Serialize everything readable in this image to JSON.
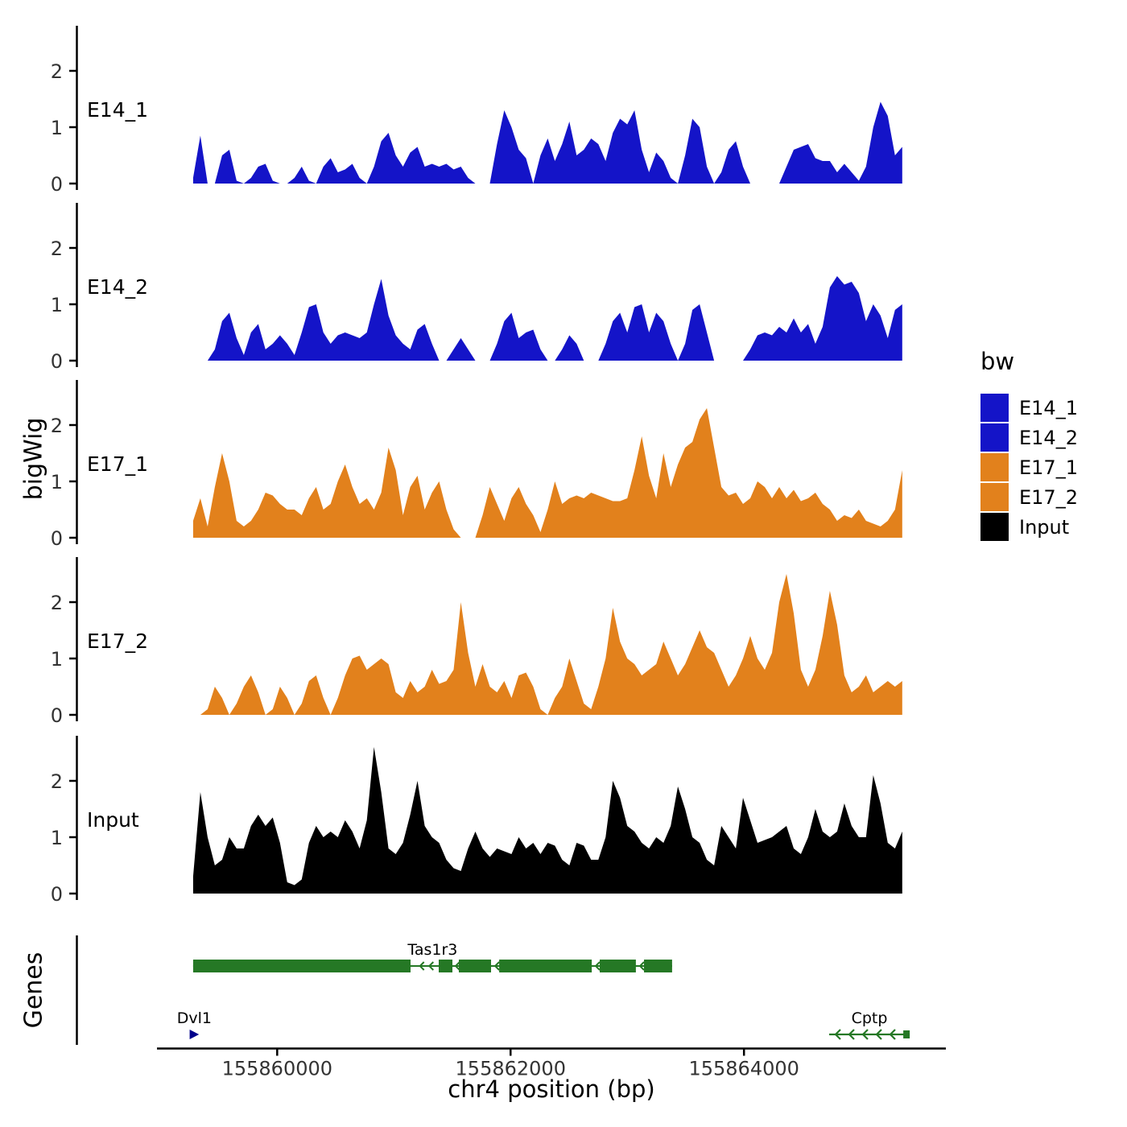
{
  "labels": {
    "y_title": "bigWig",
    "genes_title": "Genes",
    "x_title": "chr4 position (bp)"
  },
  "legend": {
    "title": "bw",
    "items": [
      {
        "label": "E14_1",
        "color": "#1414C8"
      },
      {
        "label": "E14_2",
        "color": "#1414C8"
      },
      {
        "label": "E17_1",
        "color": "#E2811C"
      },
      {
        "label": "E17_2",
        "color": "#E2811C"
      },
      {
        "label": "Input",
        "color": "#000000"
      }
    ]
  },
  "chart_data": {
    "type": "area",
    "title": "",
    "xlabel": "chr4 position (bp)",
    "ylabel": "bigWig",
    "x_domain": [
      155858970,
      155865730
    ],
    "x_ticks": [
      {
        "value": 155860000,
        "label": "155860000"
      },
      {
        "value": 155862000,
        "label": "155862000"
      },
      {
        "value": 155864000,
        "label": "155864000"
      }
    ],
    "y_ticks": [
      0,
      1,
      2
    ],
    "y_max": 2.6,
    "x_start": 155859280,
    "x_step": 62,
    "series": [
      {
        "name": "E14_1",
        "color": "#1414C8",
        "values": [
          0.1,
          0.85,
          0,
          0,
          0.5,
          0.6,
          0.05,
          0,
          0.1,
          0.3,
          0.35,
          0.05,
          0,
          0,
          0.1,
          0.3,
          0.05,
          0,
          0.3,
          0.45,
          0.2,
          0.25,
          0.35,
          0.1,
          0,
          0.3,
          0.75,
          0.9,
          0.5,
          0.3,
          0.55,
          0.65,
          0.3,
          0.35,
          0.3,
          0.35,
          0.25,
          0.3,
          0.1,
          0,
          0,
          0,
          0.7,
          1.3,
          1.0,
          0.6,
          0.45,
          0,
          0.5,
          0.8,
          0.4,
          0.7,
          1.1,
          0.5,
          0.6,
          0.8,
          0.7,
          0.4,
          0.9,
          1.15,
          1.05,
          1.3,
          0.6,
          0.2,
          0.55,
          0.4,
          0.1,
          0,
          0.5,
          1.15,
          1.0,
          0.3,
          0,
          0.2,
          0.6,
          0.75,
          0.3,
          0,
          0,
          0,
          0,
          0,
          0.3,
          0.6,
          0.65,
          0.7,
          0.45,
          0.4,
          0.4,
          0.2,
          0.35,
          0.2,
          0.05,
          0.3,
          1.0,
          1.45,
          1.2,
          0.5,
          0.65
        ]
      },
      {
        "name": "E14_2",
        "color": "#1414C8",
        "values": [
          0,
          0,
          0,
          0.2,
          0.7,
          0.85,
          0.4,
          0.1,
          0.5,
          0.65,
          0.2,
          0.3,
          0.45,
          0.3,
          0.1,
          0.5,
          0.95,
          1.0,
          0.5,
          0.3,
          0.45,
          0.5,
          0.45,
          0.4,
          0.5,
          1.0,
          1.45,
          0.8,
          0.45,
          0.3,
          0.2,
          0.55,
          0.65,
          0.3,
          0,
          0,
          0.2,
          0.4,
          0.2,
          0,
          0,
          0,
          0.3,
          0.7,
          0.85,
          0.4,
          0.5,
          0.55,
          0.2,
          0,
          0,
          0.2,
          0.45,
          0.3,
          0,
          0,
          0,
          0.3,
          0.7,
          0.85,
          0.5,
          0.95,
          1.0,
          0.5,
          0.85,
          0.7,
          0.3,
          0,
          0.3,
          0.9,
          1.0,
          0.5,
          0,
          0,
          0,
          0,
          0,
          0.2,
          0.45,
          0.5,
          0.45,
          0.6,
          0.5,
          0.75,
          0.5,
          0.65,
          0.3,
          0.6,
          1.3,
          1.5,
          1.35,
          1.4,
          1.2,
          0.7,
          1.0,
          0.8,
          0.4,
          0.9,
          1.0
        ]
      },
      {
        "name": "E17_1",
        "color": "#E2811C",
        "values": [
          0.3,
          0.7,
          0.2,
          0.9,
          1.5,
          1.0,
          0.3,
          0.2,
          0.3,
          0.5,
          0.8,
          0.75,
          0.6,
          0.5,
          0.5,
          0.4,
          0.7,
          0.9,
          0.5,
          0.6,
          1.0,
          1.3,
          0.9,
          0.6,
          0.7,
          0.5,
          0.8,
          1.6,
          1.2,
          0.4,
          0.9,
          1.1,
          0.5,
          0.8,
          1.0,
          0.5,
          0.15,
          0,
          0,
          0,
          0.4,
          0.9,
          0.6,
          0.3,
          0.7,
          0.9,
          0.6,
          0.4,
          0.1,
          0.5,
          1.0,
          0.6,
          0.7,
          0.75,
          0.7,
          0.8,
          0.75,
          0.7,
          0.65,
          0.65,
          0.7,
          1.2,
          1.8,
          1.1,
          0.7,
          1.5,
          0.9,
          1.3,
          1.6,
          1.7,
          2.1,
          2.3,
          1.6,
          0.9,
          0.75,
          0.8,
          0.6,
          0.7,
          1.0,
          0.9,
          0.7,
          0.9,
          0.7,
          0.85,
          0.65,
          0.7,
          0.8,
          0.6,
          0.5,
          0.3,
          0.4,
          0.35,
          0.5,
          0.3,
          0.25,
          0.2,
          0.3,
          0.5,
          1.2
        ]
      },
      {
        "name": "E17_2",
        "color": "#E2811C",
        "values": [
          0,
          0,
          0.1,
          0.5,
          0.3,
          0,
          0.2,
          0.5,
          0.7,
          0.4,
          0,
          0.1,
          0.5,
          0.3,
          0,
          0.2,
          0.6,
          0.7,
          0.3,
          0,
          0.3,
          0.7,
          1.0,
          1.05,
          0.8,
          0.9,
          1.0,
          0.9,
          0.4,
          0.3,
          0.6,
          0.4,
          0.5,
          0.8,
          0.55,
          0.6,
          0.8,
          2.0,
          1.1,
          0.5,
          0.9,
          0.5,
          0.4,
          0.6,
          0.3,
          0.7,
          0.75,
          0.5,
          0.1,
          0,
          0.3,
          0.5,
          1.0,
          0.6,
          0.2,
          0.1,
          0.5,
          1.0,
          1.9,
          1.3,
          1.0,
          0.9,
          0.7,
          0.8,
          0.9,
          1.3,
          1.0,
          0.7,
          0.9,
          1.2,
          1.5,
          1.2,
          1.1,
          0.8,
          0.5,
          0.7,
          1.0,
          1.4,
          1.0,
          0.8,
          1.1,
          2.0,
          2.5,
          1.8,
          0.8,
          0.5,
          0.8,
          1.4,
          2.2,
          1.6,
          0.7,
          0.4,
          0.5,
          0.7,
          0.4,
          0.5,
          0.6,
          0.5,
          0.6
        ]
      },
      {
        "name": "Input",
        "color": "#000000",
        "values": [
          0.3,
          1.8,
          1.0,
          0.5,
          0.6,
          1.0,
          0.8,
          0.8,
          1.2,
          1.4,
          1.2,
          1.35,
          0.9,
          0.2,
          0.15,
          0.25,
          0.9,
          1.2,
          1.0,
          1.1,
          1.0,
          1.3,
          1.1,
          0.8,
          1.3,
          2.6,
          1.8,
          0.8,
          0.7,
          0.9,
          1.4,
          2.0,
          1.2,
          1.0,
          0.9,
          0.6,
          0.45,
          0.4,
          0.8,
          1.1,
          0.8,
          0.65,
          0.8,
          0.75,
          0.7,
          1.0,
          0.8,
          0.9,
          0.7,
          0.9,
          0.85,
          0.6,
          0.5,
          0.9,
          0.85,
          0.6,
          0.6,
          1.0,
          2.0,
          1.7,
          1.2,
          1.1,
          0.9,
          0.8,
          1.0,
          0.9,
          1.2,
          1.9,
          1.5,
          1.0,
          0.9,
          0.6,
          0.5,
          1.2,
          1.0,
          0.8,
          1.7,
          1.3,
          0.9,
          0.95,
          1.0,
          1.1,
          1.2,
          0.8,
          0.7,
          1.0,
          1.5,
          1.1,
          1.0,
          1.1,
          1.6,
          1.2,
          1.0,
          1.0,
          2.1,
          1.6,
          0.9,
          0.8,
          1.1
        ]
      }
    ],
    "genes": [
      {
        "name": "Tas1r3",
        "strand": "-",
        "glyph": "exon-boxes",
        "row": 1,
        "color": "#257825",
        "span": [
          155859280,
          155863384
        ],
        "exons": [
          [
            155859280,
            155861143
          ],
          [
            155861384,
            155861501
          ],
          [
            155861557,
            155861833
          ],
          [
            155861902,
            155862695
          ],
          [
            155862764,
            155863074
          ],
          [
            155863143,
            155863384
          ]
        ]
      },
      {
        "name": "Dvl1",
        "strand": "+",
        "glyph": "arrow-head",
        "row": 2,
        "color": "#00008B",
        "span": [
          155859250,
          155859330
        ],
        "exons": [
          [
            155859250,
            155859330
          ]
        ]
      },
      {
        "name": "Cptp",
        "strand": "-",
        "glyph": "arrow-line",
        "row": 2,
        "color": "#257825",
        "span": [
          155864730,
          155865420
        ],
        "exons": [
          [
            155864730,
            155865420
          ]
        ]
      }
    ]
  }
}
